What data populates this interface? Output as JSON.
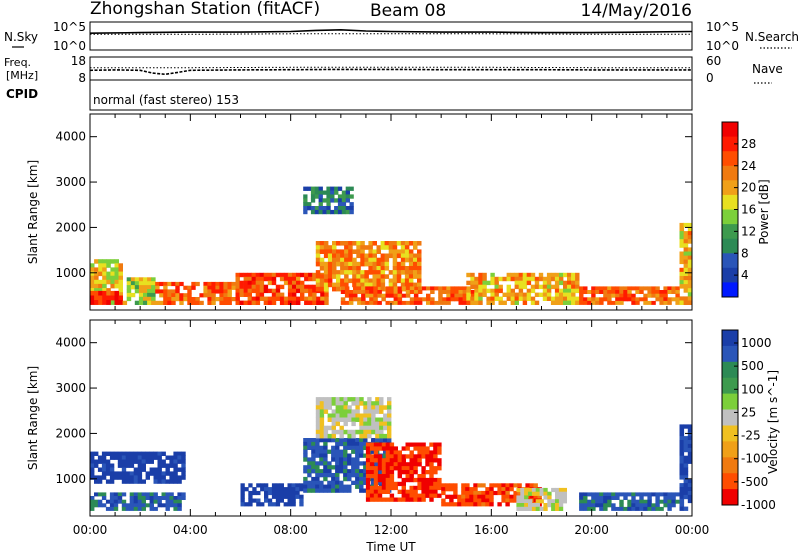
{
  "header": {
    "title": "Zhongshan Station (fitACF)",
    "beam": "Beam 08",
    "date": "14/May/2016"
  },
  "nsky_panel": {
    "label": "N.Sky",
    "left_ticks": [
      "10^5",
      "10^0"
    ],
    "right_ticks": [
      "10^5",
      "10^0"
    ],
    "right_label": "N.Search"
  },
  "freq_panel": {
    "label_line1": "Freq.",
    "label_line2": "[MHz]",
    "left_ticks": [
      "18",
      "8"
    ],
    "right_ticks": [
      "60",
      "0"
    ],
    "right_label": "Nave"
  },
  "cpid": {
    "label": "CPID",
    "text": "normal (fast stereo) 153"
  },
  "chart_data": [
    {
      "type": "line",
      "title": "",
      "ylabel": "N.Sky",
      "y2label": "N.Search",
      "series": [
        {
          "name": "N.Sky",
          "x": [
            0,
            2,
            4,
            6,
            8,
            9,
            10,
            11,
            12,
            14,
            16,
            18,
            20,
            22,
            24
          ],
          "values": [
            3.0,
            3.1,
            3.2,
            3.2,
            3.3,
            3.5,
            3.6,
            3.4,
            3.3,
            3.2,
            3.2,
            3.1,
            3.1,
            3.2,
            3.3
          ]
        },
        {
          "name": "N.Search",
          "x": [
            0,
            4,
            8,
            12,
            16,
            20,
            24
          ],
          "values": [
            2.8,
            2.8,
            2.9,
            2.9,
            2.9,
            2.8,
            2.8
          ]
        }
      ]
    },
    {
      "type": "line",
      "title": "",
      "ylabel": "Freq. [MHz]",
      "y2label": "Nave",
      "ylim": [
        8,
        18
      ],
      "series": [
        {
          "name": "Freq.",
          "x": [
            0,
            1,
            2,
            2.5,
            3,
            3.5,
            4,
            6,
            8,
            10,
            12,
            14,
            16,
            18,
            20,
            22,
            24
          ],
          "values": [
            12.2,
            12.4,
            12.2,
            11.0,
            10.5,
            11.3,
            12.2,
            12.4,
            12.5,
            12.6,
            12.6,
            12.5,
            12.5,
            12.5,
            12.4,
            12.4,
            12.4
          ]
        },
        {
          "name": "Nave",
          "x": [
            0,
            4,
            8,
            12,
            16,
            20,
            24
          ],
          "values": [
            32,
            32,
            33,
            33,
            33,
            32,
            32
          ]
        }
      ]
    },
    {
      "type": "heatmap",
      "title": "",
      "xlabel": "",
      "ylabel": "Slant Range [km]",
      "xlim": [
        0,
        24
      ],
      "ylim": [
        180,
        4500
      ],
      "yticks": [
        1000,
        2000,
        3000,
        4000
      ],
      "xticks": [
        "00:00",
        "04:00",
        "08:00",
        "12:00",
        "16:00",
        "20:00",
        "00:00"
      ],
      "colorbar": {
        "label": "Power [dB]",
        "ticks": [
          4,
          8,
          12,
          16,
          20,
          24,
          28
        ],
        "range": [
          0,
          32
        ],
        "colors": [
          "#0019ff",
          "#1a3ea8",
          "#2a55b8",
          "#2c8a55",
          "#3d9a4e",
          "#7ccf3a",
          "#e8e020",
          "#f0a018",
          "#f07a10",
          "#ff4d00",
          "#ff1a00",
          "#f00000"
        ]
      },
      "features": [
        {
          "time_start": 0.0,
          "time_end": 1.3,
          "range_start": 300,
          "range_end": 1300,
          "value": 18
        },
        {
          "time_start": 0.0,
          "time_end": 1.3,
          "range_start": 300,
          "range_end": 600,
          "value": 28
        },
        {
          "time_start": 1.3,
          "time_end": 2.6,
          "range_start": 300,
          "range_end": 900,
          "value": 16
        },
        {
          "time_start": 2.6,
          "time_end": 5.8,
          "range_start": 300,
          "range_end": 800,
          "value": 24
        },
        {
          "time_start": 5.8,
          "time_end": 9.5,
          "range_start": 300,
          "range_end": 1000,
          "value": 26
        },
        {
          "time_start": 8.5,
          "time_end": 10.5,
          "range_start": 2300,
          "range_end": 2900,
          "value": 8
        },
        {
          "time_start": 9.0,
          "time_end": 13.2,
          "range_start": 600,
          "range_end": 1700,
          "value": 22
        },
        {
          "time_start": 10.0,
          "time_end": 15.5,
          "range_start": 300,
          "range_end": 700,
          "value": 24
        },
        {
          "time_start": 15.0,
          "time_end": 19.5,
          "range_start": 300,
          "range_end": 1000,
          "value": 20
        },
        {
          "time_start": 19.5,
          "time_end": 23.5,
          "range_start": 300,
          "range_end": 700,
          "value": 24
        },
        {
          "time_start": 23.5,
          "time_end": 24.0,
          "range_start": 300,
          "range_end": 2100,
          "value": 20
        }
      ]
    },
    {
      "type": "heatmap",
      "title": "",
      "xlabel": "Time UT",
      "ylabel": "Slant Range [km]",
      "xlim": [
        0,
        24
      ],
      "ylim": [
        180,
        4500
      ],
      "yticks": [
        1000,
        2000,
        3000,
        4000
      ],
      "xticks": [
        "00:00",
        "04:00",
        "08:00",
        "12:00",
        "16:00",
        "20:00",
        "00:00"
      ],
      "colorbar": {
        "label": "Velocity [m s^-1]",
        "ticks": [
          1000,
          500,
          100,
          25,
          -25,
          -100,
          -500,
          -1000
        ],
        "colors": [
          "#1a3ea8",
          "#2a55b8",
          "#2c8a55",
          "#3d9a4e",
          "#7ccf3a",
          "#c0c0c0",
          "#f0c020",
          "#f0a018",
          "#f07a10",
          "#ff4d00",
          "#f00000"
        ]
      },
      "features": [
        {
          "time_start": 0.0,
          "time_end": 3.8,
          "range_start": 300,
          "range_end": 700,
          "value": 120
        },
        {
          "time_start": 0.0,
          "time_end": 3.8,
          "range_start": 900,
          "range_end": 1600,
          "value": 700
        },
        {
          "time_start": 6.0,
          "time_end": 8.5,
          "range_start": 400,
          "range_end": 900,
          "value": 700
        },
        {
          "time_start": 8.5,
          "time_end": 12.0,
          "range_start": 700,
          "range_end": 1900,
          "value": 150
        },
        {
          "time_start": 9.0,
          "time_end": 12.0,
          "range_start": 1900,
          "range_end": 2800,
          "value": 0
        },
        {
          "time_start": 11.0,
          "time_end": 14.0,
          "range_start": 500,
          "range_end": 1800,
          "value": -300
        },
        {
          "time_start": 14.0,
          "time_end": 18.0,
          "range_start": 400,
          "range_end": 900,
          "value": -200
        },
        {
          "time_start": 17.0,
          "time_end": 19.0,
          "range_start": 300,
          "range_end": 800,
          "value": 0
        },
        {
          "time_start": 19.5,
          "time_end": 23.5,
          "range_start": 300,
          "range_end": 700,
          "value": 150
        },
        {
          "time_start": 23.5,
          "time_end": 24.0,
          "range_start": 300,
          "range_end": 2200,
          "value": 300
        }
      ]
    }
  ]
}
